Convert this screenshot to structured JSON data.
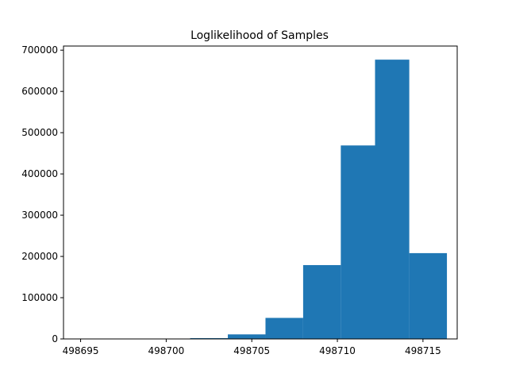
{
  "chart_data": {
    "type": "bar",
    "title": "Loglikelihood of Samples",
    "xlabel": "",
    "ylabel": "",
    "xlim": [
      498694.0,
      498717.0
    ],
    "ylim": [
      0,
      710000
    ],
    "bins": [
      {
        "x0": 498694.6,
        "x1": 498696.8,
        "count": 0
      },
      {
        "x0": 498696.8,
        "x1": 498699.0,
        "count": 0
      },
      {
        "x0": 498699.0,
        "x1": 498701.4,
        "count": 500
      },
      {
        "x0": 498701.4,
        "x1": 498703.6,
        "count": 2000
      },
      {
        "x0": 498703.6,
        "x1": 498705.8,
        "count": 11000
      },
      {
        "x0": 498705.8,
        "x1": 498708.0,
        "count": 51000
      },
      {
        "x0": 498708.0,
        "x1": 498710.2,
        "count": 179000
      },
      {
        "x0": 498710.2,
        "x1": 498712.2,
        "count": 469000
      },
      {
        "x0": 498712.2,
        "x1": 498714.2,
        "count": 677000
      },
      {
        "x0": 498714.2,
        "x1": 498716.4,
        "count": 208000
      }
    ],
    "xticks": [
      {
        "value": 498695,
        "label": "498695"
      },
      {
        "value": 498700,
        "label": "498700"
      },
      {
        "value": 498705,
        "label": "498705"
      },
      {
        "value": 498710,
        "label": "498710"
      },
      {
        "value": 498715,
        "label": "498715"
      }
    ],
    "yticks": [
      {
        "value": 0,
        "label": "0"
      },
      {
        "value": 100000,
        "label": "100000"
      },
      {
        "value": 200000,
        "label": "200000"
      },
      {
        "value": 300000,
        "label": "300000"
      },
      {
        "value": 400000,
        "label": "400000"
      },
      {
        "value": 500000,
        "label": "500000"
      },
      {
        "value": 600000,
        "label": "600000"
      },
      {
        "value": 700000,
        "label": "700000"
      }
    ],
    "color": "#1f77b4",
    "grid": false,
    "legend": "none"
  }
}
